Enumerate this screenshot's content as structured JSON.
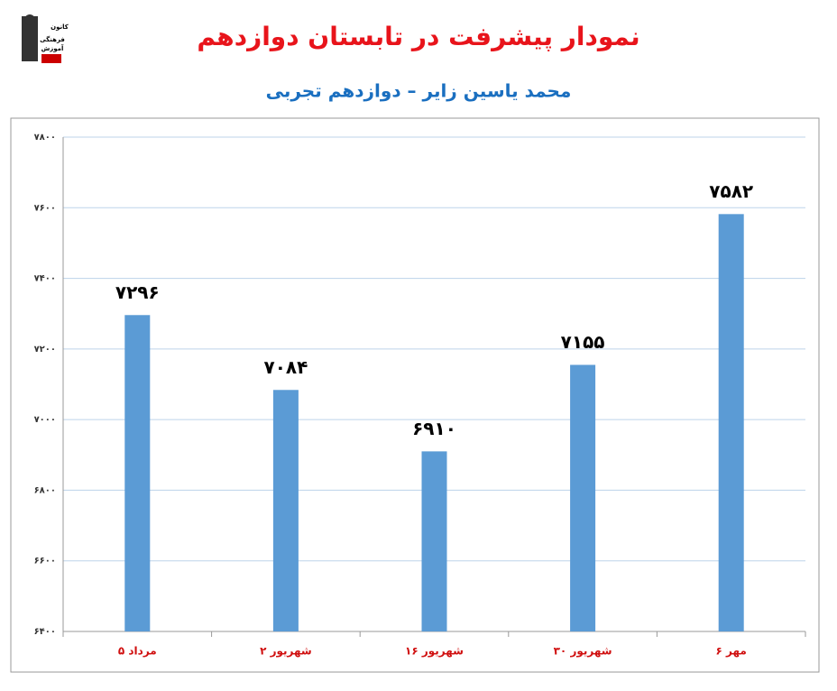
{
  "logo": {
    "lines": [
      "کانون",
      "فرهنگی",
      "آموزش"
    ]
  },
  "chart_data": {
    "type": "bar",
    "title": "نمودار پیشرفت در تابستان دوازدهم",
    "subtitle": "محمد یاسین زایر – دوازدهم تجربی",
    "categories": [
      "۵ مرداد",
      "۲ شهریور",
      "۱۶ شهریور",
      "۳۰ شهریور",
      "۶ مهر"
    ],
    "values": [
      7296,
      7084,
      6910,
      7155,
      7582
    ],
    "value_labels": [
      "۷۲۹۶",
      "۷۰۸۴",
      "۶۹۱۰",
      "۷۱۵۵",
      "۷۵۸۲"
    ],
    "color": "#5b9bd5",
    "ylim": [
      6400,
      7800
    ],
    "yticks": [
      {
        "value": 6400,
        "label": "۶۴۰۰"
      },
      {
        "value": 6600,
        "label": "۶۶۰۰"
      },
      {
        "value": 6800,
        "label": "۶۸۰۰"
      },
      {
        "value": 7000,
        "label": "۷۰۰۰"
      },
      {
        "value": 7200,
        "label": "۷۲۰۰"
      },
      {
        "value": 7400,
        "label": "۷۴۰۰"
      },
      {
        "value": 7600,
        "label": "۷۶۰۰"
      },
      {
        "value": 7800,
        "label": "۷۸۰۰"
      }
    ],
    "grid": true
  }
}
